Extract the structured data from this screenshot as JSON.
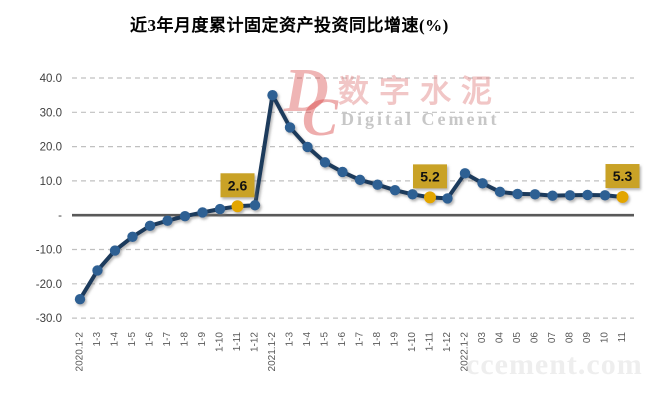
{
  "title": "近3年月度累计固定资产投资同比增速(%)",
  "watermark": {
    "logo_d": "D",
    "logo_c": "C",
    "name_cn": "数字水泥",
    "name_en": "Digital Cement",
    "site": "ccement.com"
  },
  "chart_data": {
    "type": "line",
    "title": "近3年月度累计固定资产投资同比增速(%)",
    "categories": [
      "2020.1-2",
      "1-3",
      "1-4",
      "1-5",
      "1-6",
      "1-7",
      "1-8",
      "1-9",
      "1-10",
      "1-11",
      "1-12",
      "2021.1-2",
      "1-3",
      "1-4",
      "1-5",
      "1-6",
      "1-7",
      "1-8",
      "1-9",
      "1-10",
      "1-11",
      "1-12",
      "2022.1-2",
      "03",
      "04",
      "05",
      "06",
      "07",
      "08",
      "09",
      "10",
      "11"
    ],
    "values": [
      -24.5,
      -16.1,
      -10.3,
      -6.3,
      -3.1,
      -1.6,
      -0.3,
      0.8,
      1.8,
      2.6,
      2.9,
      35.0,
      25.6,
      19.9,
      15.4,
      12.6,
      10.3,
      8.9,
      7.3,
      6.1,
      5.2,
      4.9,
      12.2,
      9.3,
      6.8,
      6.2,
      6.1,
      5.7,
      5.8,
      5.9,
      5.8,
      5.3
    ],
    "series_name": "累计固定资产投资同比增速",
    "xlabel": "",
    "ylabel": "",
    "ylim": [
      -30,
      40
    ],
    "yticks": [
      40,
      30,
      20,
      10,
      0,
      -10,
      -20,
      -30
    ],
    "ytick_labels": [
      "40.0",
      "30.0",
      "20.0",
      "10.0",
      "-",
      "-10.0",
      "-20.0",
      "-30.0"
    ],
    "grid": "horizontal-dashed",
    "legend": "none",
    "highlights": [
      {
        "index": 9,
        "label": "2.6"
      },
      {
        "index": 20,
        "label": "5.2"
      },
      {
        "index": 31,
        "label": "5.3"
      }
    ],
    "colors": {
      "line": "#1f3a5c",
      "marker": "#2e6093",
      "highlight_marker": "#e3a600",
      "label_box": "#c9a227",
      "label_text": "#111111",
      "zero_axis": "#595959",
      "gridline": "#c0c0c0",
      "ytick_text": "#404040",
      "xtick_text": "#595959"
    }
  }
}
